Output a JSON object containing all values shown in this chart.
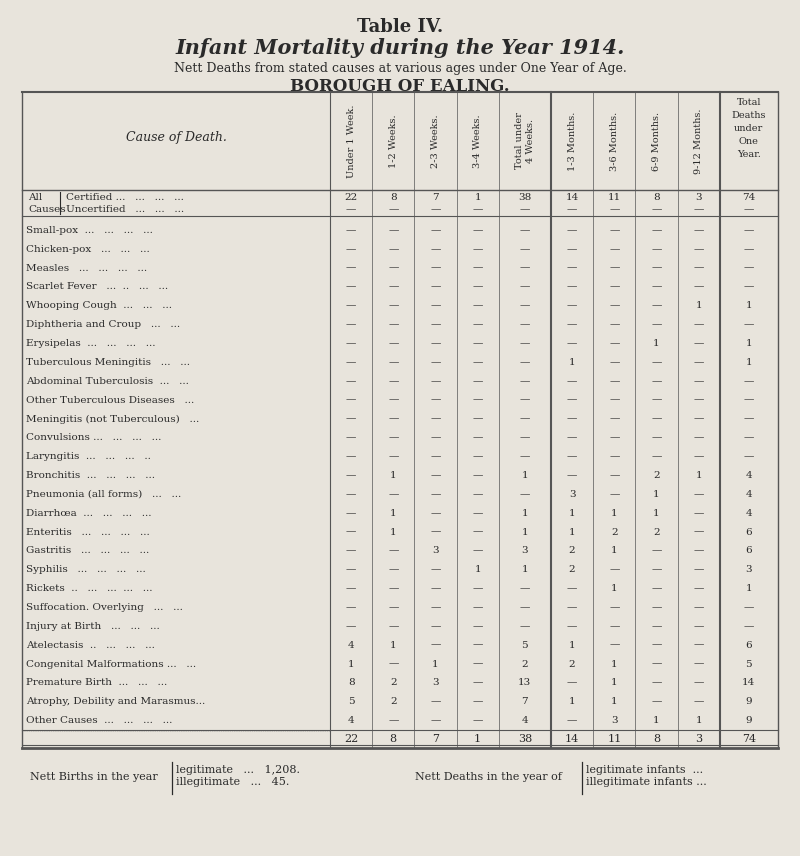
{
  "title1": "Table IV.",
  "title2": "Infant Mortality during the Year 1914.",
  "title3": "Nett Deaths from stated causes at various ages under One Year of Age.",
  "title4": "BOROUGH OF EALING.",
  "col_headers": [
    "Under 1 Week.",
    "1-2 Weeks.",
    "2-3 Weeks.",
    "3-4 Weeks.",
    "Total under\n4 Weeks.",
    "1-3 Months.",
    "3-6 Months.",
    "6-9 Months.",
    "9-12 Months.",
    "Total\nDeaths\nunder\nOne\nYear."
  ],
  "row_label_header": "Cause of Death.",
  "rows": [
    {
      "label_a": "All",
      "label_b": "Causes",
      "label_c": "Certified ...   ...   ...   ...",
      "label_d": "Uncertified   ...   ...   ...",
      "vals_a": [
        "22",
        "8",
        "7",
        "1",
        "38",
        "14",
        "11",
        "8",
        "3",
        "74"
      ],
      "vals_b": [
        "—",
        "—",
        "—",
        "—",
        "—",
        "—",
        "—",
        "—",
        "—",
        "—"
      ],
      "type": "allcauses"
    },
    {
      "label": "Small-pox  ...   ...   ...   ...",
      "vals": [
        "—",
        "—",
        "—",
        "—",
        "—",
        "—",
        "—",
        "—",
        "—",
        "—"
      ]
    },
    {
      "label": "Chicken-pox   ...   ...   ...",
      "vals": [
        "—",
        "—",
        "—",
        "—",
        "—",
        "—",
        "—",
        "—",
        "—",
        "—"
      ]
    },
    {
      "label": "Measles   ...   ...   ...   ...",
      "vals": [
        "—",
        "—",
        "—",
        "—",
        "—",
        "—",
        "—",
        "—",
        "—",
        "—"
      ]
    },
    {
      "label": "Scarlet Fever   ...  ..   ...   ...",
      "vals": [
        "—",
        "—",
        "—",
        "—",
        "—",
        "—",
        "—",
        "—",
        "—",
        "—"
      ]
    },
    {
      "label": "Whooping Cough  ...   ...   ...",
      "vals": [
        "—",
        "—",
        "—",
        "—",
        "—",
        "—",
        "—",
        "—",
        "1",
        "1"
      ]
    },
    {
      "label": "Diphtheria and Croup   ...   ...",
      "vals": [
        "—",
        "—",
        "—",
        "—",
        "—",
        "—",
        "—",
        "—",
        "—",
        "—"
      ]
    },
    {
      "label": "Erysipelas  ...   ...   ...   ...",
      "vals": [
        "—",
        "—",
        "—",
        "—",
        "—",
        "—",
        "—",
        "1",
        "—",
        "1"
      ]
    },
    {
      "label": "Tuberculous Meningitis   ...   ...",
      "vals": [
        "—",
        "—",
        "—",
        "—",
        "—",
        "1",
        "—",
        "—",
        "—",
        "1"
      ]
    },
    {
      "label": "Abdominal Tuberculosis  ...   ...",
      "vals": [
        "—",
        "—",
        "—",
        "—",
        "—",
        "—",
        "—",
        "—",
        "—",
        "—"
      ]
    },
    {
      "label": "Other Tuberculous Diseases   ...",
      "vals": [
        "—",
        "—",
        "—",
        "—",
        "—",
        "—",
        "—",
        "—",
        "—",
        "—"
      ]
    },
    {
      "label": "Meningitis (not Tuberculous)   ...",
      "vals": [
        "—",
        "—",
        "—",
        "—",
        "—",
        "—",
        "—",
        "—",
        "—",
        "—"
      ]
    },
    {
      "label": "Convulsions ...   ...   ...   ...",
      "vals": [
        "—",
        "—",
        "—",
        "—",
        "—",
        "—",
        "—",
        "—",
        "—",
        "—"
      ]
    },
    {
      "label": "Laryngitis  ...   ...   ...   ..",
      "vals": [
        "—",
        "—",
        "—",
        "—",
        "—",
        "—",
        "—",
        "—",
        "—",
        "—"
      ]
    },
    {
      "label": "Bronchitis  ...   ...   ...   ...",
      "vals": [
        "—",
        "1",
        "—",
        "—",
        "1",
        "—",
        "—",
        "2",
        "1",
        "4"
      ]
    },
    {
      "label": "Pneumonia (all forms)   ...   ...",
      "vals": [
        "—",
        "—",
        "—",
        "—",
        "—",
        "3",
        "—",
        "1",
        "—",
        "4"
      ]
    },
    {
      "label": "Diarrhœa  ...   ...   ...   ...",
      "vals": [
        "—",
        "1",
        "—",
        "—",
        "1",
        "1",
        "1",
        "1",
        "—",
        "4"
      ]
    },
    {
      "label": "Enteritis   ...   ...   ...   ...",
      "vals": [
        "—",
        "1",
        "—",
        "—",
        "1",
        "1",
        "2",
        "2",
        "—",
        "6"
      ]
    },
    {
      "label": "Gastritis   ...   ...   ...   ...",
      "vals": [
        "—",
        "—",
        "3",
        "—",
        "3",
        "2",
        "1",
        "—",
        "—",
        "6"
      ]
    },
    {
      "label": "Syphilis   ...   ...   ...   ...",
      "vals": [
        "—",
        "—",
        "—",
        "1",
        "1",
        "2",
        "—",
        "—",
        "—",
        "3"
      ]
    },
    {
      "label": "Rickets  ..   ...   ...  ...   ...",
      "vals": [
        "—",
        "—",
        "—",
        "—",
        "—",
        "—",
        "1",
        "—",
        "—",
        "1"
      ]
    },
    {
      "label": "Suffocation. Overlying   ...   ...",
      "vals": [
        "—",
        "—",
        "—",
        "—",
        "—",
        "—",
        "—",
        "—",
        "—",
        "—"
      ]
    },
    {
      "label": "Injury at Birth   ...   ...   ...",
      "vals": [
        "—",
        "—",
        "—",
        "—",
        "—",
        "—",
        "—",
        "—",
        "—",
        "—"
      ]
    },
    {
      "label": "Atelectasis  ..   ...   ...   ...",
      "vals": [
        "4",
        "1",
        "—",
        "—",
        "5",
        "1",
        "—",
        "—",
        "—",
        "6"
      ]
    },
    {
      "label": "Congenital Malformations ...   ...",
      "vals": [
        "1",
        "—",
        "1",
        "—",
        "2",
        "2",
        "1",
        "—",
        "—",
        "5"
      ]
    },
    {
      "label": "Premature Birth  ...   ...   ...",
      "vals": [
        "8",
        "2",
        "3",
        "—",
        "13",
        "—",
        "1",
        "—",
        "—",
        "14"
      ]
    },
    {
      "label": "Atrophy, Debility and Marasmus...",
      "vals": [
        "5",
        "2",
        "—",
        "—",
        "7",
        "1",
        "1",
        "—",
        "—",
        "9"
      ]
    },
    {
      "label": "Other Causes  ...   ...   ...   ...",
      "vals": [
        "4",
        "—",
        "—",
        "—",
        "4",
        "—",
        "3",
        "1",
        "1",
        "9"
      ]
    }
  ],
  "totals_row": [
    "22",
    "8",
    "7",
    "1",
    "38",
    "14",
    "11",
    "8",
    "3",
    "74"
  ],
  "footer_left": "Nett Births in the year",
  "footer_left2": "legitimate   ...   1,208.",
  "footer_left3": "illegitimate   ...   45.",
  "footer_right": "Nett Deaths in the year of",
  "footer_right2": "legitimate infants  ...",
  "footer_right3": "illegitimate infants ...",
  "bg_color": "#e8e4dc",
  "text_color": "#2a2a2a",
  "line_color": "#555555"
}
